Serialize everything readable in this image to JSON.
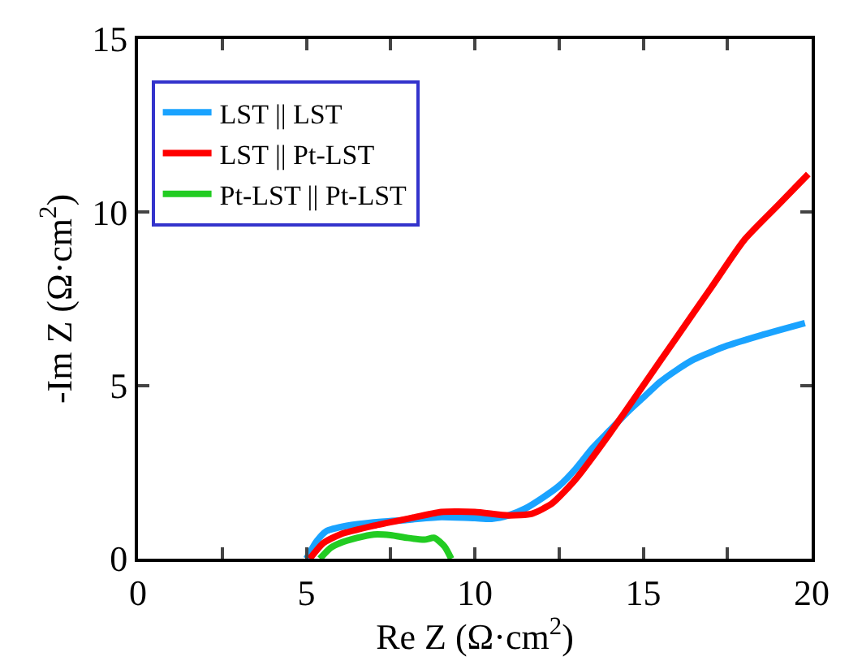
{
  "chart_data": {
    "type": "line",
    "xlabel": "Re Z (Ω·cm$^{2}$)",
    "ylabel": "-Im Z (Ω·cm$^{2}$)",
    "xlim": [
      0,
      20
    ],
    "ylim": [
      0,
      15
    ],
    "xticks": [
      0,
      {
        "value": 2.5,
        "label": null
      },
      5,
      {
        "value": 7.5,
        "label": null
      },
      10,
      {
        "value": 12.5,
        "label": null
      },
      15,
      {
        "value": 17.5,
        "label": null
      },
      20
    ],
    "yticks": [
      0,
      5,
      10,
      15
    ],
    "grid": false,
    "legend": "top left",
    "line_style": "solid",
    "marker": "none",
    "series": [
      {
        "name": "LST || LST",
        "color": "#1aa3ff",
        "x": [
          5.0,
          5.3,
          5.6,
          6.2,
          7,
          8,
          9,
          10,
          10.5,
          11,
          11.5,
          12,
          12.5,
          13,
          13.5,
          14,
          14.5,
          15,
          15.5,
          16,
          16.5,
          17.5,
          18.5,
          19.8
        ],
        "values": [
          0,
          0.5,
          0.8,
          0.95,
          1.05,
          1.12,
          1.2,
          1.17,
          1.15,
          1.25,
          1.45,
          1.75,
          2.1,
          2.6,
          3.2,
          3.7,
          4.2,
          4.65,
          5.1,
          5.45,
          5.75,
          6.15,
          6.45,
          6.8
        ]
      },
      {
        "name": "LST || Pt-LST",
        "color": "#ff0000",
        "x": [
          5.1,
          5.5,
          6,
          7,
          8,
          9,
          10,
          11,
          11.7,
          12.3,
          13,
          14,
          15,
          16,
          17,
          18,
          19,
          19.9
        ],
        "values": [
          0,
          0.45,
          0.7,
          0.95,
          1.15,
          1.35,
          1.35,
          1.25,
          1.3,
          1.6,
          2.3,
          3.6,
          5.0,
          6.4,
          7.8,
          9.2,
          10.2,
          11.1
        ]
      },
      {
        "name": "Pt-LST || Pt-LST",
        "color": "#22cc22",
        "x": [
          5.4,
          5.7,
          6,
          6.5,
          7,
          7.5,
          8,
          8.5,
          8.8,
          9.1,
          9.3
        ],
        "values": [
          0,
          0.3,
          0.45,
          0.6,
          0.7,
          0.68,
          0.6,
          0.55,
          0.6,
          0.35,
          0
        ]
      }
    ]
  }
}
